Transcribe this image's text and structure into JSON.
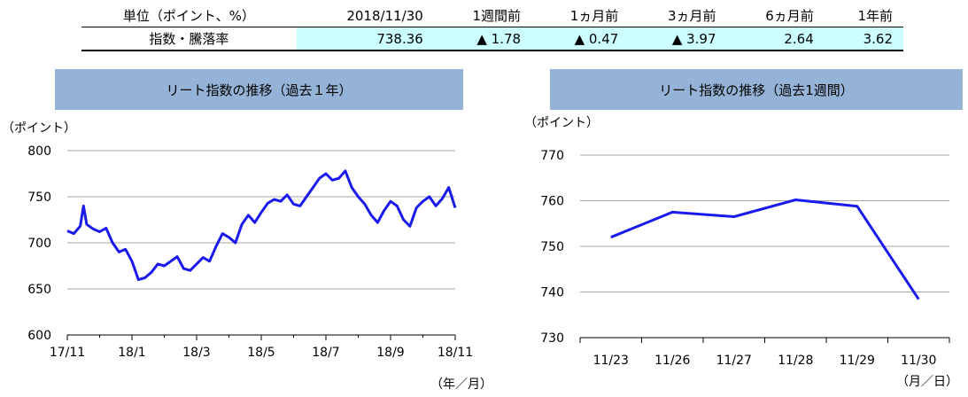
{
  "table": {
    "headers": [
      "単位（ポイント、%）",
      "2018/11/30",
      "1週間前",
      "1ヵ月前",
      "3ヵ月前",
      "6ヵ月前",
      "1年前"
    ],
    "row_label": "指数・騰落率",
    "values": [
      "738.36",
      "▲ 1.78",
      "▲ 0.47",
      "▲ 3.97",
      "2.64",
      "3.62"
    ],
    "highlight_color": "#ccffff"
  },
  "chart_data": [
    {
      "type": "line",
      "title": "リート指数の推移（過去１年）",
      "yunit": "（ポイント）",
      "xunit": "（年／月）",
      "ylim": [
        600,
        800
      ],
      "yticks": [
        600,
        650,
        700,
        750,
        800
      ],
      "xticks": [
        "17/11",
        "18/1",
        "18/3",
        "18/5",
        "18/7",
        "18/9",
        "18/11"
      ],
      "grid": true,
      "color": "#1a1aee",
      "series": [
        {
          "x": [
            0,
            0.2,
            0.4,
            0.5,
            0.6,
            0.8,
            1.0,
            1.2,
            1.4,
            1.6,
            1.8,
            2.0,
            2.2,
            2.4,
            2.6,
            2.8,
            3.0,
            3.2,
            3.4,
            3.6,
            3.8,
            4.0,
            4.2,
            4.4,
            4.6,
            4.8,
            5.0,
            5.2,
            5.4,
            5.6,
            5.8,
            6.0,
            6.2,
            6.4,
            6.6,
            6.8,
            7.0,
            7.2,
            7.4,
            7.6,
            7.8,
            8.0,
            8.2,
            8.4,
            8.6,
            8.8,
            9.0,
            9.2,
            9.4,
            9.6,
            9.8,
            10.0,
            10.2,
            10.4,
            10.6,
            10.8,
            11.0,
            11.2,
            11.4,
            11.6,
            11.8,
            12.0
          ],
          "y": [
            713,
            710,
            718,
            740,
            720,
            715,
            712,
            716,
            700,
            690,
            693,
            680,
            660,
            662,
            668,
            677,
            675,
            680,
            685,
            672,
            670,
            677,
            684,
            680,
            696,
            710,
            706,
            700,
            720,
            730,
            722,
            733,
            743,
            747,
            745,
            752,
            742,
            740,
            750,
            760,
            770,
            775,
            768,
            770,
            778,
            760,
            750,
            742,
            730,
            722,
            735,
            745,
            740,
            725,
            718,
            738,
            745,
            750,
            740,
            748,
            760,
            738
          ]
        }
      ]
    },
    {
      "type": "line",
      "title": "リート指数の推移（過去1週間）",
      "yunit": "（ポイント）",
      "xunit": "（月／日）",
      "ylim": [
        730,
        770
      ],
      "yticks": [
        730,
        740,
        750,
        760,
        770
      ],
      "categories": [
        "11/23",
        "11/26",
        "11/27",
        "11/28",
        "11/29",
        "11/30"
      ],
      "grid": true,
      "color": "#1a1aee",
      "series": [
        {
          "values": [
            752.0,
            757.5,
            756.5,
            760.2,
            758.8,
            738.4
          ]
        }
      ]
    }
  ]
}
